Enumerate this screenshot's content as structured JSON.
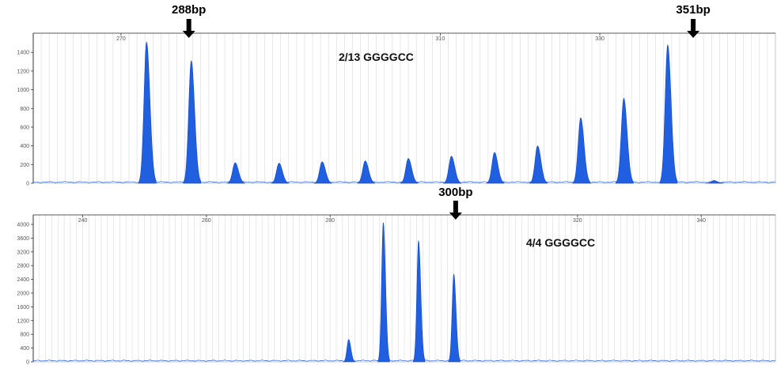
{
  "chart_data": [
    {
      "type": "area",
      "title": "",
      "xlabel": "",
      "ylabel": "",
      "annotation": "2/13 GGGGCC",
      "xlim": [
        259,
        352
      ],
      "ylim": [
        0,
        1520
      ],
      "x_ticks": [
        270,
        310,
        330
      ],
      "y_ticks": [
        0,
        200,
        400,
        600,
        800,
        1000,
        1200,
        1400
      ],
      "grid": "vertical",
      "markers": [
        {
          "label": "288bp",
          "x": 278.5
        },
        {
          "label": "351bp",
          "x": 341.7
        }
      ],
      "peak_width": 1.0,
      "peaks": [
        {
          "x": 273.2,
          "height": 1510
        },
        {
          "x": 278.8,
          "height": 1310
        },
        {
          "x": 284.3,
          "height": 220
        },
        {
          "x": 289.8,
          "height": 215
        },
        {
          "x": 295.2,
          "height": 230
        },
        {
          "x": 300.6,
          "height": 240
        },
        {
          "x": 306.0,
          "height": 265
        },
        {
          "x": 311.4,
          "height": 290
        },
        {
          "x": 316.8,
          "height": 330
        },
        {
          "x": 322.2,
          "height": 400
        },
        {
          "x": 327.6,
          "height": 700
        },
        {
          "x": 333.0,
          "height": 910
        },
        {
          "x": 338.5,
          "height": 1480
        },
        {
          "x": 344.3,
          "height": 30
        }
      ]
    },
    {
      "type": "area",
      "title": "",
      "xlabel": "",
      "ylabel": "",
      "annotation": "4/4 GGGGCC",
      "xlim": [
        232,
        352
      ],
      "ylim": [
        0,
        4000
      ],
      "x_ticks": [
        240,
        260,
        280,
        320,
        340
      ],
      "y_ticks": [
        0,
        400,
        800,
        1200,
        1600,
        2000,
        2400,
        2800,
        3200,
        3600,
        4000
      ],
      "grid": "vertical",
      "markers": [
        {
          "label": "300bp",
          "x": 300.3
        }
      ],
      "peak_width": 0.85,
      "peaks": [
        {
          "x": 283.0,
          "height": 650
        },
        {
          "x": 288.6,
          "height": 4050
        },
        {
          "x": 294.3,
          "height": 3520
        },
        {
          "x": 300.0,
          "height": 2550
        }
      ]
    }
  ],
  "colors": {
    "peak_fill": "#1f5fe0",
    "peak_stroke": "#1448c8",
    "grid": "#d9d9d9",
    "axis": "#333333",
    "marker_arrow": "#000000"
  }
}
